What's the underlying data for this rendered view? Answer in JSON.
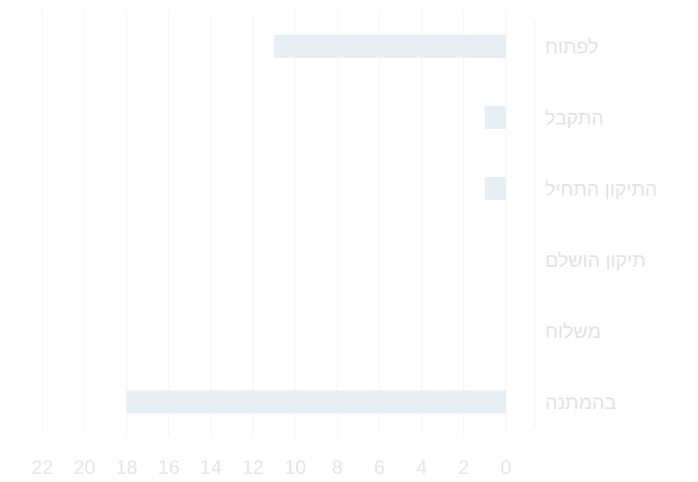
{
  "chart_data": {
    "type": "bar",
    "orientation": "horizontal",
    "x_axis_direction": "reversed",
    "categories": [
      "לפתוח",
      "התקבל",
      "התיקון התחיל",
      "תיקון הושלם",
      "משלוח",
      "בהמתנה"
    ],
    "values": [
      11,
      1,
      1,
      0,
      0,
      18
    ],
    "xlim": [
      0,
      22
    ],
    "x_ticks": [
      "0",
      "2",
      "4",
      "6",
      "8",
      "10",
      "12",
      "14",
      "16",
      "18",
      "20",
      "22"
    ],
    "grid": "vertical",
    "legend": "none",
    "colors": {
      "bar": "#e7eef4",
      "grid": "#f3f3f3",
      "tick_text": "#e5e5e5",
      "category_text": "#e2e2e2",
      "axis_line": "#f1f1f1"
    }
  }
}
